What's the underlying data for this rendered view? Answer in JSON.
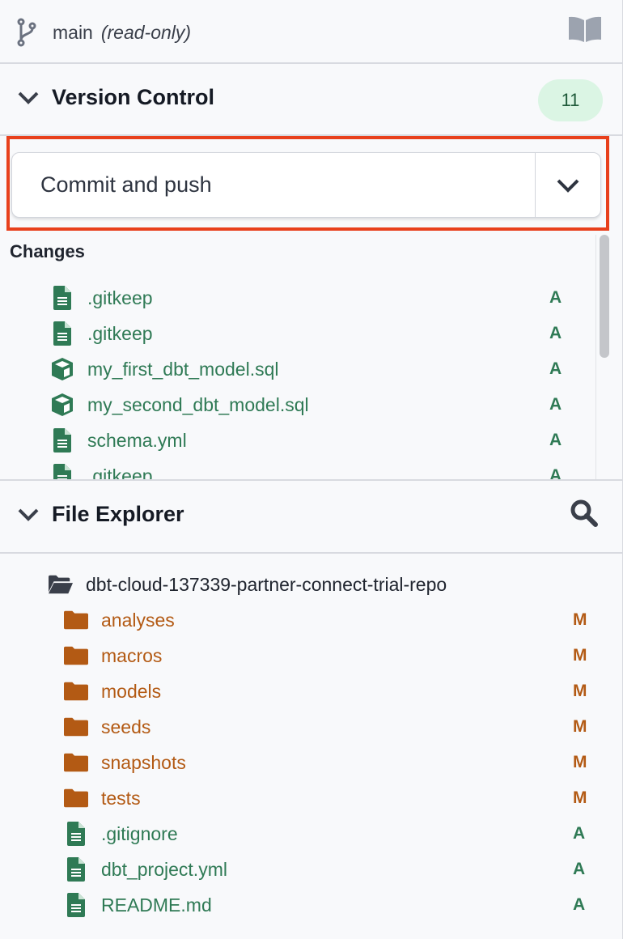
{
  "branch": {
    "name": "main",
    "mode": "(read-only)"
  },
  "version_control": {
    "title": "Version Control",
    "count": "11",
    "commit_label": "Commit and push",
    "changes_title": "Changes",
    "changes": [
      {
        "name": ".gitkeep",
        "icon": "file-icon",
        "status": "A"
      },
      {
        "name": ".gitkeep",
        "icon": "file-icon",
        "status": "A"
      },
      {
        "name": "my_first_dbt_model.sql",
        "icon": "model-cube-icon",
        "status": "A"
      },
      {
        "name": "my_second_dbt_model.sql",
        "icon": "model-cube-icon",
        "status": "A"
      },
      {
        "name": "schema.yml",
        "icon": "file-icon",
        "status": "A"
      },
      {
        "name": ".gitkeep",
        "icon": "file-icon",
        "status": "A"
      }
    ]
  },
  "file_explorer": {
    "title": "File Explorer",
    "root": "dbt-cloud-137339-partner-connect-trial-repo",
    "items": [
      {
        "name": "analyses",
        "type": "folder",
        "status": "M"
      },
      {
        "name": "macros",
        "type": "folder",
        "status": "M"
      },
      {
        "name": "models",
        "type": "folder",
        "status": "M"
      },
      {
        "name": "seeds",
        "type": "folder",
        "status": "M"
      },
      {
        "name": "snapshots",
        "type": "folder",
        "status": "M"
      },
      {
        "name": "tests",
        "type": "folder",
        "status": "M"
      },
      {
        "name": ".gitignore",
        "type": "file",
        "status": "A"
      },
      {
        "name": "dbt_project.yml",
        "type": "file",
        "status": "A"
      },
      {
        "name": "README.md",
        "type": "file",
        "status": "A"
      }
    ]
  },
  "colors": {
    "added": "#2f7a55",
    "modified": "#b35a14",
    "highlight": "#e8401c",
    "badge_bg": "#dbf5e4"
  }
}
